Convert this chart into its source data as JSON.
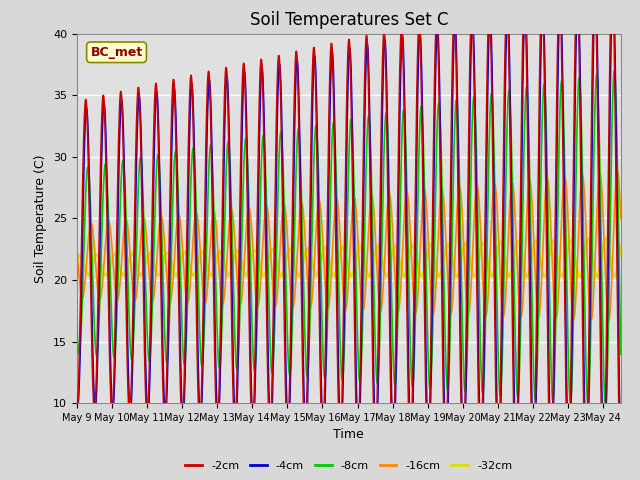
{
  "title": "Soil Temperatures Set C",
  "xlabel": "Time",
  "ylabel": "Soil Temperature (C)",
  "ylim": [
    10,
    40
  ],
  "xlim": [
    0,
    15.5
  ],
  "annotation": "BC_met",
  "x_tick_labels": [
    "May 9",
    "May 10",
    "May 11",
    "May 12",
    "May 13",
    "May 14",
    "May 15",
    "May 16",
    "May 17",
    "May 18",
    "May 19",
    "May 20",
    "May 21",
    "May 22",
    "May 23",
    "May 24"
  ],
  "series": {
    "-2cm": {
      "color": "#cc0000",
      "lw": 1.2
    },
    "-4cm": {
      "color": "#0000cc",
      "lw": 1.2
    },
    "-8cm": {
      "color": "#00cc00",
      "lw": 1.2
    },
    "-16cm": {
      "color": "#ff8800",
      "lw": 1.2
    },
    "-32cm": {
      "color": "#dddd00",
      "lw": 1.8
    }
  },
  "plot_bg": "#e0e0e0",
  "fig_bg": "#d8d8d8",
  "grid_color": "#ffffff"
}
